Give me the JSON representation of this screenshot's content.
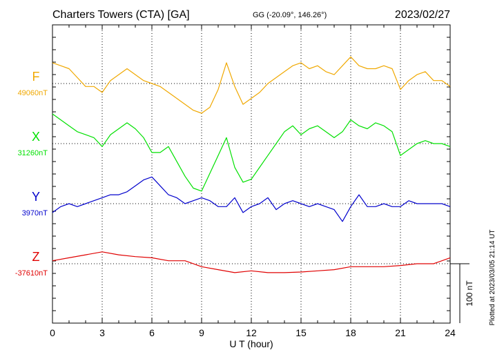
{
  "header": {
    "station": "Charters Towers (CTA)  [GA]",
    "coords": "GG (-20.09°, 146.26°)",
    "date": "2023/02/27"
  },
  "footer": {
    "plotted": "Plotted at 2023/03/05 21:14 UT"
  },
  "chart_data": {
    "type": "line",
    "title": "Charters Towers (CTA)  [GA]",
    "xlabel": "U T (hour)",
    "x_ticks": [
      "0",
      "3",
      "6",
      "9",
      "12",
      "15",
      "18",
      "21",
      "24"
    ],
    "xlim": [
      0,
      24
    ],
    "grid": true,
    "scale_bar": "100 nT",
    "colors": {
      "F": "#f0a800",
      "X": "#00e000",
      "Y": "#0000cc",
      "Z": "#e00000"
    },
    "series": [
      {
        "name": "F",
        "baseline": "49060nT",
        "x": [
          0,
          0.5,
          1,
          1.5,
          2,
          2.5,
          3,
          3.5,
          4,
          4.5,
          5,
          5.5,
          6,
          6.5,
          7,
          7.5,
          8,
          8.5,
          9,
          9.5,
          10,
          10.5,
          11,
          11.5,
          12,
          12.5,
          13,
          13.5,
          14,
          14.5,
          15,
          15.5,
          16,
          16.5,
          17,
          17.5,
          18,
          18.5,
          19,
          19.5,
          20,
          20.5,
          21,
          21.5,
          22,
          22.5,
          23,
          23.5,
          24
        ],
        "values": [
          35,
          30,
          25,
          10,
          -5,
          -5,
          -15,
          5,
          15,
          25,
          15,
          5,
          0,
          -5,
          -15,
          -25,
          -35,
          -45,
          -50,
          -40,
          -10,
          35,
          -5,
          -35,
          -25,
          -15,
          0,
          10,
          20,
          30,
          35,
          25,
          30,
          20,
          15,
          30,
          45,
          30,
          25,
          25,
          30,
          25,
          -10,
          5,
          15,
          20,
          5,
          5,
          -5
        ]
      },
      {
        "name": "X",
        "baseline": "31260nT",
        "x": [
          0,
          0.5,
          1,
          1.5,
          2,
          2.5,
          3,
          3.5,
          4,
          4.5,
          5,
          5.5,
          6,
          6.5,
          7,
          7.5,
          8,
          8.5,
          9,
          9.5,
          10,
          10.5,
          11,
          11.5,
          12,
          12.5,
          13,
          13.5,
          14,
          14.5,
          15,
          15.5,
          16,
          16.5,
          17,
          17.5,
          18,
          18.5,
          19,
          19.5,
          20,
          20.5,
          21,
          21.5,
          22,
          22.5,
          23,
          23.5,
          24
        ],
        "values": [
          50,
          40,
          30,
          20,
          15,
          10,
          -5,
          15,
          25,
          35,
          25,
          10,
          -15,
          -15,
          -5,
          -30,
          -55,
          -75,
          -80,
          -50,
          -20,
          10,
          -40,
          -65,
          -60,
          -40,
          -20,
          0,
          20,
          30,
          15,
          25,
          30,
          20,
          10,
          20,
          40,
          30,
          25,
          35,
          30,
          20,
          -20,
          -10,
          0,
          5,
          0,
          0,
          -5
        ]
      },
      {
        "name": "Y",
        "baseline": "3970nT",
        "x": [
          0,
          0.5,
          1,
          1.5,
          2,
          2.5,
          3,
          3.5,
          4,
          4.5,
          5,
          5.5,
          6,
          6.5,
          7,
          7.5,
          8,
          8.5,
          9,
          9.5,
          10,
          10.5,
          11,
          11.5,
          12,
          12.5,
          13,
          13.5,
          14,
          14.5,
          15,
          15.5,
          16,
          16.5,
          17,
          17.5,
          18,
          18.5,
          19,
          19.5,
          20,
          20.5,
          21,
          21.5,
          22,
          22.5,
          23,
          23.5,
          24
        ],
        "values": [
          -15,
          -5,
          0,
          -5,
          0,
          5,
          10,
          15,
          15,
          20,
          30,
          40,
          45,
          30,
          15,
          10,
          0,
          5,
          10,
          5,
          -5,
          -5,
          10,
          -15,
          -5,
          0,
          10,
          -10,
          0,
          5,
          0,
          -5,
          0,
          -5,
          -10,
          -30,
          -5,
          15,
          -5,
          -5,
          0,
          -5,
          -5,
          5,
          0,
          0,
          0,
          0,
          -5
        ]
      },
      {
        "name": "Z",
        "baseline": "-37610nT",
        "x": [
          0,
          1,
          2,
          3,
          4,
          5,
          6,
          7,
          8,
          9,
          10,
          11,
          12,
          13,
          14,
          15,
          16,
          17,
          18,
          19,
          20,
          21,
          22,
          23,
          24
        ],
        "values": [
          5,
          10,
          15,
          20,
          15,
          12,
          10,
          5,
          5,
          -5,
          -10,
          -15,
          -12,
          -15,
          -15,
          -14,
          -12,
          -10,
          -5,
          -5,
          -5,
          -3,
          0,
          0,
          10
        ]
      }
    ]
  }
}
